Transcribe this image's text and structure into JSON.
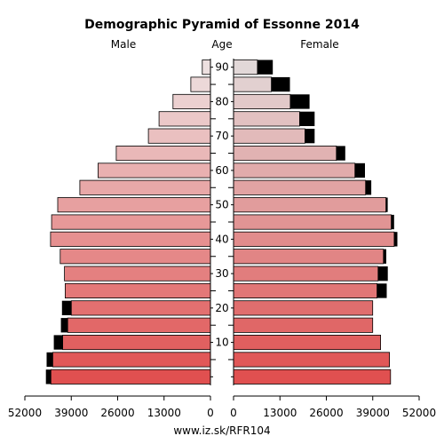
{
  "chart_data": {
    "type": "bar",
    "title": "Demographic Pyramid of Essonne 2014",
    "left_label": "Male",
    "center_label": "Age",
    "right_label": "Female",
    "source": "www.iz.sk/RFR104",
    "age_groups": [
      "0-4",
      "5-9",
      "10-14",
      "15-19",
      "20-24",
      "25-29",
      "30-34",
      "35-39",
      "40-44",
      "45-49",
      "50-54",
      "55-59",
      "60-64",
      "65-69",
      "70-74",
      "75-79",
      "80-84",
      "85-89",
      "90+"
    ],
    "age_tick_labels": [
      "10",
      "20",
      "30",
      "40",
      "50",
      "60",
      "70",
      "80",
      "90"
    ],
    "x_tick_labels_left": [
      "52000",
      "39000",
      "26000",
      "13000",
      "0"
    ],
    "x_tick_labels_right": [
      "0",
      "13000",
      "26000",
      "39000",
      "52000"
    ],
    "xlim": [
      0,
      52000
    ],
    "series": [
      {
        "name": "Male",
        "values": [
          44700,
          44200,
          41400,
          40000,
          39000,
          40700,
          40900,
          42100,
          44800,
          44500,
          42800,
          36600,
          31500,
          26400,
          17400,
          14400,
          10500,
          5500,
          2300
        ],
        "surplus": [
          1400,
          1700,
          2500,
          1900,
          2600,
          0,
          0,
          0,
          0,
          0,
          0,
          0,
          0,
          0,
          0,
          0,
          0,
          0,
          0
        ]
      },
      {
        "name": "Female",
        "values": [
          44000,
          43700,
          41200,
          39000,
          39000,
          40200,
          40500,
          42000,
          45000,
          44200,
          42700,
          37000,
          34000,
          28800,
          20000,
          18500,
          15900,
          10600,
          6700
        ],
        "surplus": [
          0,
          0,
          0,
          0,
          0,
          2700,
          2700,
          800,
          900,
          800,
          500,
          1600,
          2800,
          2500,
          2700,
          4200,
          5400,
          5200,
          4300
        ]
      }
    ],
    "colors": {
      "male_young": "#e05050",
      "male_old": "#ede0e0",
      "female_young": "#e05050",
      "female_old": "#e2d8d8",
      "surplus": "#000000",
      "stroke": "#000000"
    }
  }
}
